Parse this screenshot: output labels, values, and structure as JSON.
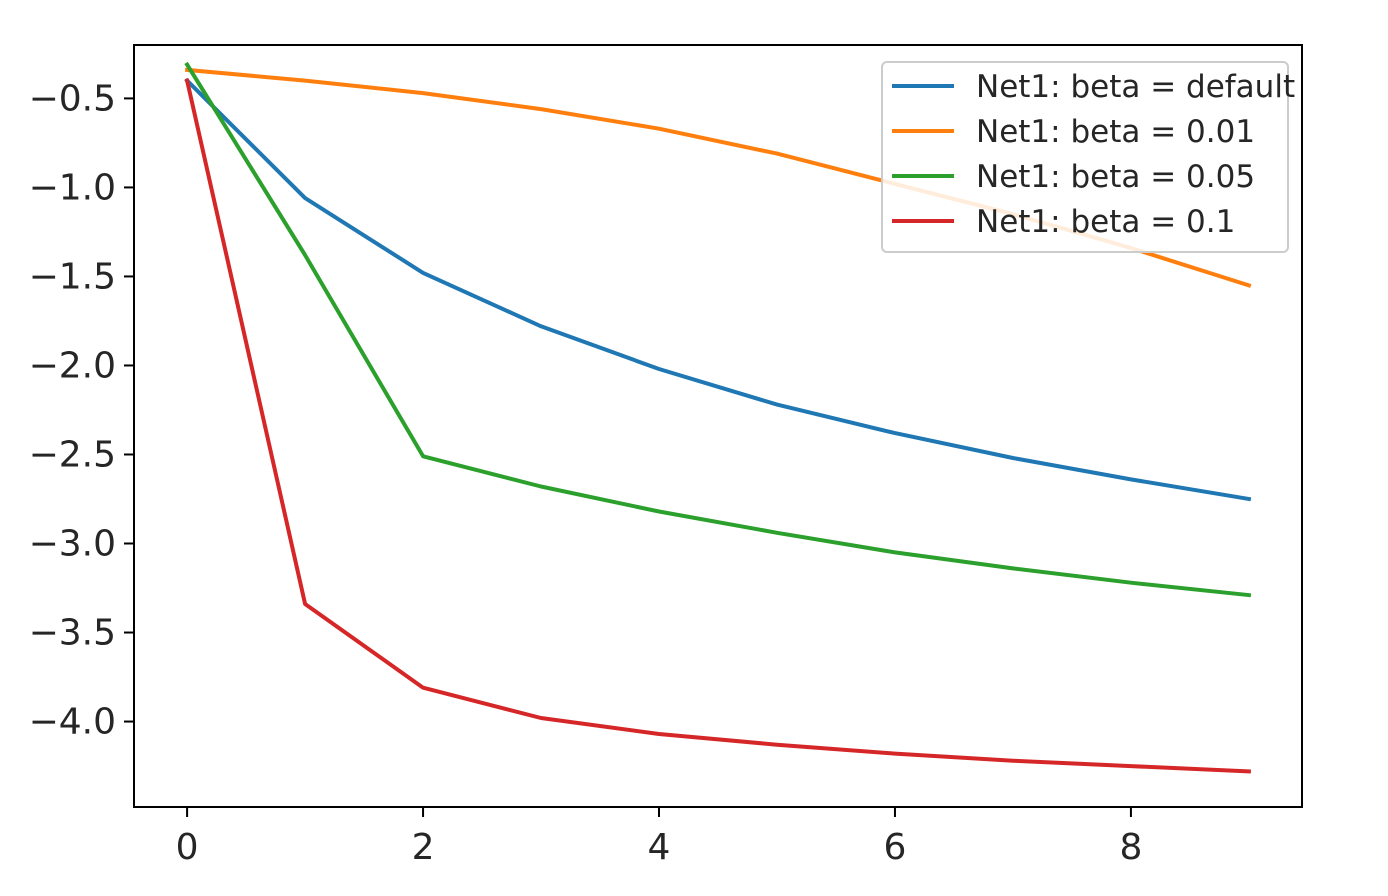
{
  "chart_data": {
    "type": "line",
    "x": [
      0,
      1,
      2,
      3,
      4,
      5,
      6,
      7,
      8,
      9
    ],
    "series": [
      {
        "name": "Net1: beta = default",
        "color": "#1f77b4",
        "values": [
          -0.4,
          -1.06,
          -1.48,
          -1.78,
          -2.02,
          -2.22,
          -2.38,
          -2.52,
          -2.64,
          -2.75
        ]
      },
      {
        "name": "Net1: beta = 0.01",
        "color": "#ff7f0e",
        "values": [
          -0.34,
          -0.4,
          -0.47,
          -0.56,
          -0.67,
          -0.81,
          -0.98,
          -1.15,
          -1.34,
          -1.55
        ]
      },
      {
        "name": "Net1: beta = 0.05",
        "color": "#2ca02c",
        "values": [
          -0.31,
          -1.38,
          -2.51,
          -2.68,
          -2.82,
          -2.94,
          -3.05,
          -3.14,
          -3.22,
          -3.29
        ]
      },
      {
        "name": "Net1: beta = 0.1",
        "color": "#d62728",
        "values": [
          -0.4,
          -3.34,
          -3.81,
          -3.98,
          -4.07,
          -4.13,
          -4.18,
          -4.22,
          -4.25,
          -4.28
        ]
      }
    ],
    "xticks": [
      0,
      2,
      4,
      6,
      8
    ],
    "xtick_labels": [
      "0",
      "2",
      "4",
      "6",
      "8"
    ],
    "yticks": [
      -0.5,
      -1.0,
      -1.5,
      -2.0,
      -2.5,
      -3.0,
      -3.5,
      -4.0
    ],
    "ytick_labels": [
      "−0.5",
      "−1.0",
      "−1.5",
      "−2.0",
      "−2.5",
      "−3.0",
      "−3.5",
      "−4.0"
    ],
    "xlim": [
      -0.45,
      9.45
    ],
    "ylim": [
      -4.48,
      -0.2
    ],
    "grid": false,
    "legend_position": "top-right"
  }
}
